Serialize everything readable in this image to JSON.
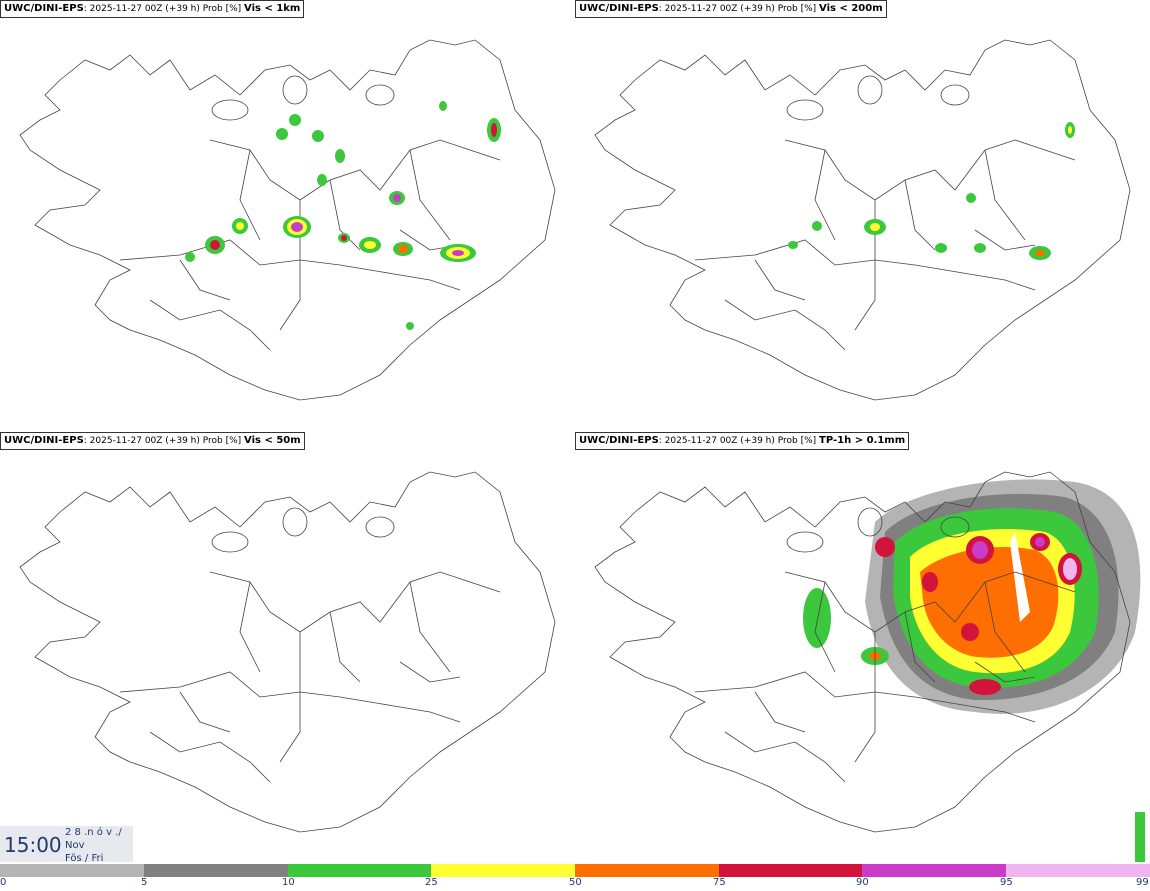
{
  "panels": [
    {
      "model": "UWC/DINI-EPS",
      "meta": ": 2025-11-27 00Z (+39 h) Prob [%] ",
      "variable": "Vis < 1km"
    },
    {
      "model": "UWC/DINI-EPS",
      "meta": ": 2025-11-27 00Z (+39 h) Prob [%] ",
      "variable": "Vis < 200m"
    },
    {
      "model": "UWC/DINI-EPS",
      "meta": ": 2025-11-27 00Z (+39 h) Prob [%] ",
      "variable": "Vis < 50m"
    },
    {
      "model": "UWC/DINI-EPS",
      "meta": ": 2025-11-27 00Z (+39 h) Prob [%] ",
      "variable": "TP-1h > 0.1mm"
    }
  ],
  "time": {
    "clock": "15:00",
    "date_line": "2 8 .n ó v ./",
    "month": "Nov",
    "weekday": "Fös / Fri"
  },
  "legend": {
    "ticks": [
      "0",
      "5",
      "10",
      "25",
      "50",
      "75",
      "90",
      "95",
      "99"
    ],
    "colors": [
      "#ffffff",
      "#b4b4b4",
      "#808080",
      "#3cc83c",
      "#ffff32",
      "#ff6e00",
      "#d2143c",
      "#c83cc8",
      "#f0b4f0"
    ]
  }
}
